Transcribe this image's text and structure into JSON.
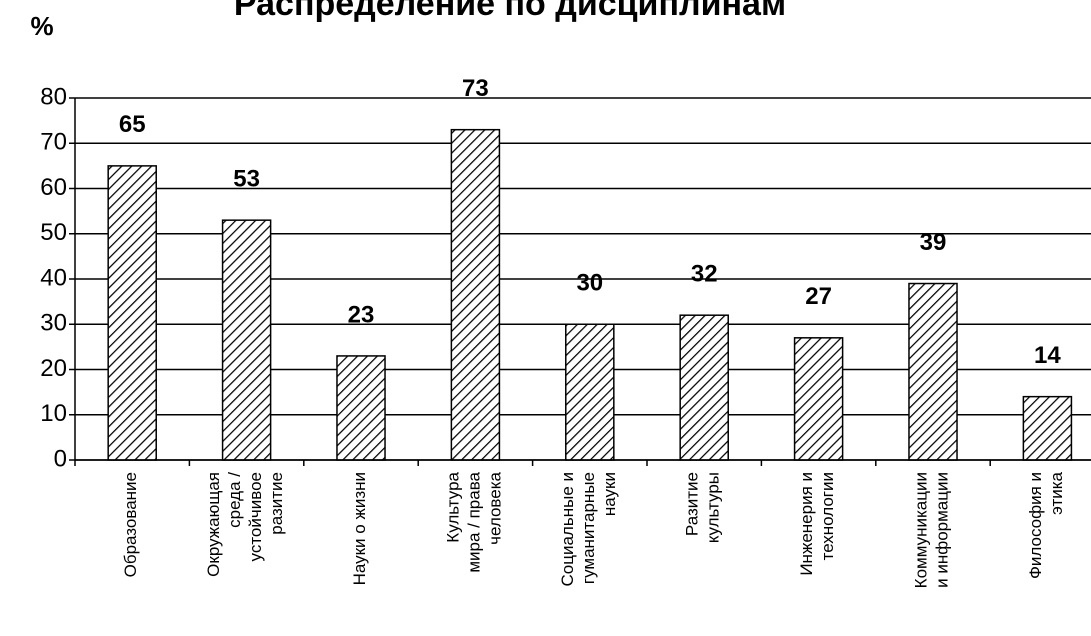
{
  "chart_data": {
    "type": "bar",
    "title": "Распределение по дисциплинам",
    "y_label": "%",
    "categories": [
      "Образование",
      "Окружающая\nсреда /\nустойчивое\nразитие",
      "Науки о жизни",
      "Культура\nмира / права\nчеловека",
      "Социальные и\nгуманитарные\nнауки",
      "Разитие\nкультуры",
      "Инженерия и\nтехнологии",
      "Коммуникации\nи информации",
      "Философия и\nэтика"
    ],
    "values": [
      65,
      53,
      23,
      73,
      30,
      32,
      27,
      39,
      14
    ],
    "color": "#000000",
    "hatch": true,
    "ylim": [
      0,
      80
    ],
    "yticks": [
      0,
      10,
      20,
      30,
      40,
      50,
      60,
      70,
      80
    ],
    "grid": true
  }
}
